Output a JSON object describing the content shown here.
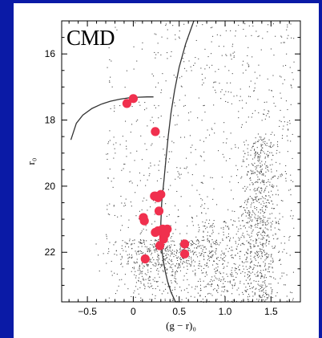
{
  "slide": {
    "background_color": "#0a1aa6",
    "panel_color": "#ffffff",
    "title": "CMD"
  },
  "chart_data": {
    "type": "scatter",
    "title": "CMD",
    "xlabel": "(g − r)₀",
    "ylabel": "r₀",
    "xlim": [
      -0.78,
      1.82
    ],
    "ylim": [
      23.5,
      15.0
    ],
    "y_inverted": true,
    "xticks": [
      -0.5,
      0,
      0.5,
      1.0,
      1.5
    ],
    "xtick_labels": [
      "−0.5",
      "0",
      "0.5",
      "1.0",
      "1.5"
    ],
    "yticks": [
      16,
      18,
      20,
      22
    ],
    "ytick_labels": [
      "16",
      "18",
      "20",
      "22"
    ],
    "grid": false,
    "legend": "none",
    "series": [
      {
        "kind": "field-stars",
        "color": "#4a4a4a",
        "count": 2400,
        "distribution": "density"
      },
      {
        "kind": "isochrone-rgb",
        "color": "#333333",
        "x": [
          0.66,
          0.57,
          0.5,
          0.45,
          0.41,
          0.38,
          0.355,
          0.335,
          0.32,
          0.31,
          0.305,
          0.3,
          0.3,
          0.305,
          0.315,
          0.33,
          0.35,
          0.375,
          0.41,
          0.46,
          0.53
        ],
        "y": [
          15.0,
          15.7,
          16.4,
          17.1,
          17.8,
          18.5,
          19.2,
          19.8,
          20.2,
          20.5,
          20.8,
          21.1,
          21.4,
          21.7,
          22.0,
          22.3,
          22.6,
          22.9,
          23.2,
          23.5,
          23.8
        ]
      },
      {
        "kind": "isochrone-hb",
        "color": "#333333",
        "x": [
          -0.68,
          -0.62,
          -0.55,
          -0.45,
          -0.35,
          -0.25,
          -0.15,
          -0.05,
          0.05,
          0.15,
          0.22
        ],
        "y": [
          18.6,
          18.1,
          17.85,
          17.65,
          17.52,
          17.43,
          17.37,
          17.33,
          17.31,
          17.3,
          17.3
        ]
      },
      {
        "kind": "members",
        "color": "#f0304e",
        "x": [
          -0.07,
          0.0,
          0.24,
          0.23,
          0.3,
          0.27,
          0.24,
          0.28,
          0.11,
          0.12,
          0.27,
          0.32,
          0.37,
          0.33,
          0.24,
          0.35,
          0.33,
          0.29,
          0.56,
          0.56,
          0.13
        ],
        "y": [
          17.5,
          17.35,
          18.35,
          20.3,
          20.25,
          20.35,
          20.3,
          20.75,
          20.95,
          21.05,
          21.35,
          21.3,
          21.3,
          21.5,
          21.4,
          21.45,
          21.6,
          21.8,
          21.75,
          22.05,
          22.2
        ]
      }
    ]
  }
}
